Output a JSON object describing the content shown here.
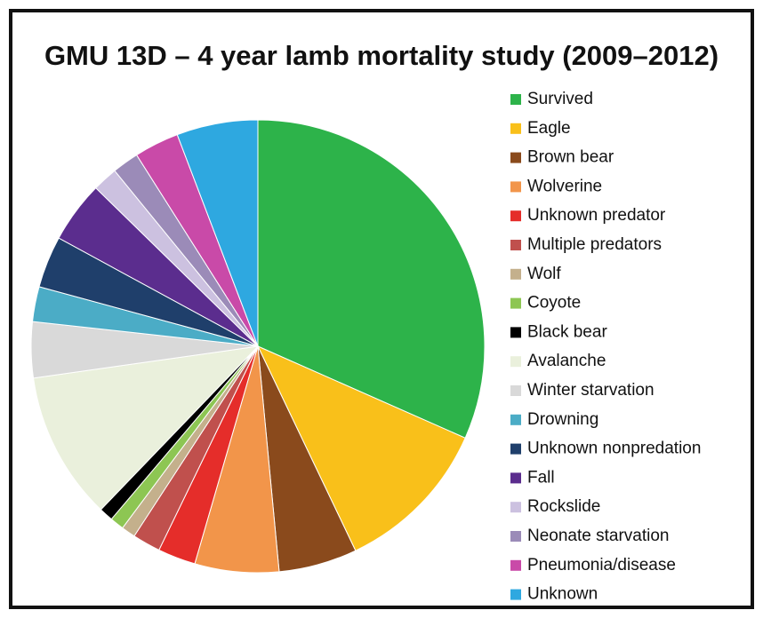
{
  "chart_data": {
    "type": "pie",
    "title": "GMU 13D – 4 year lamb mortality study (2009–2012)",
    "categories": [
      "Survived",
      "Eagle",
      "Brown bear",
      "Wolverine",
      "Unknown predator",
      "Multiple predators",
      "Wolf",
      "Coyote",
      "Black bear",
      "Avalanche",
      "Winter starvation",
      "Drowning",
      "Unknown nonpredation",
      "Fall",
      "Rockslide",
      "Neonate starvation",
      "Pneumonia/disease",
      "Unknown"
    ],
    "values": [
      31.7,
      11.3,
      5.6,
      6.0,
      2.7,
      2.0,
      1.0,
      1.0,
      1.0,
      10.6,
      4.0,
      2.5,
      3.7,
      4.4,
      1.8,
      1.9,
      3.2,
      5.8
    ],
    "colors": [
      "#2db34a",
      "#f9c01a",
      "#8a4a1c",
      "#f2954a",
      "#e52d2a",
      "#c0504d",
      "#c4b08c",
      "#8dc653",
      "#000000",
      "#eaf0dc",
      "#d9d9d9",
      "#4bacc6",
      "#1f3f6b",
      "#5b2d8e",
      "#ccc1e0",
      "#9b8bb8",
      "#c94aa8",
      "#2ea8e0"
    ],
    "legend": "right"
  }
}
